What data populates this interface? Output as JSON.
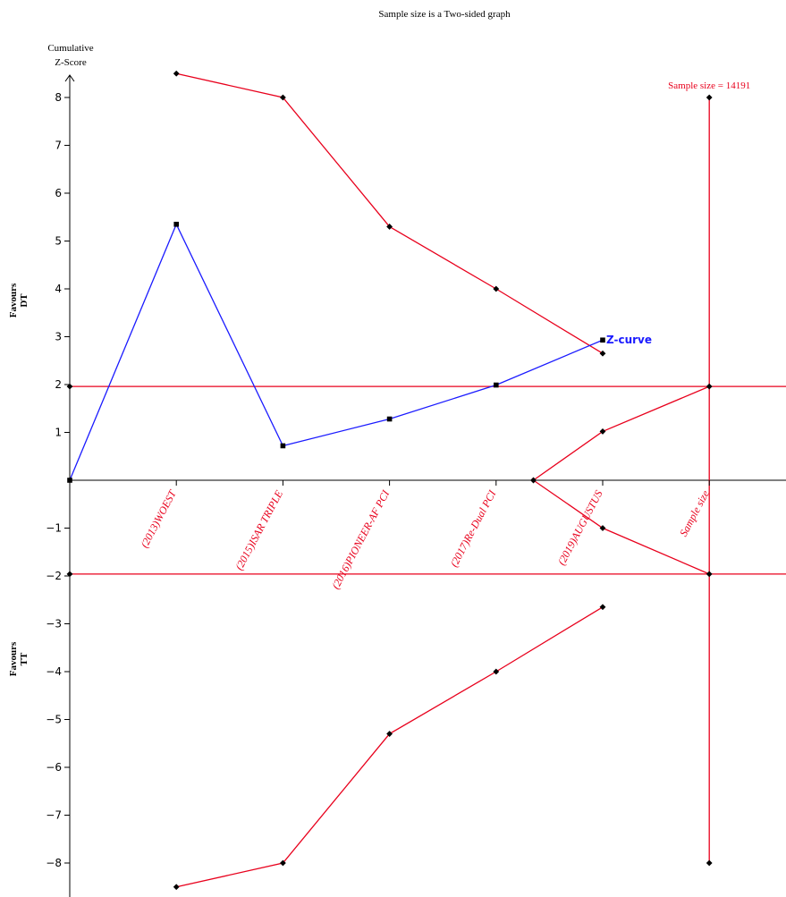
{
  "chart_data": {
    "type": "line",
    "title": "Sample size is a Two-sided graph",
    "ylabel_line1": "Cumulative",
    "ylabel_line2": "Z-Score",
    "favours_upper_line1": "Favours",
    "favours_upper_line2": "DT",
    "favours_lower_line1": "Favours",
    "favours_lower_line2": "TT",
    "ylim": [
      -8.5,
      8.6
    ],
    "yticks": [
      -8,
      -7,
      -6,
      -5,
      -4,
      -3,
      -2,
      -1,
      1,
      2,
      3,
      4,
      5,
      6,
      7,
      8
    ],
    "x_positions": [
      0,
      1,
      2,
      3,
      4,
      5,
      6
    ],
    "categories": [
      "(2013)WOEST",
      "(2015)ISAR TRIPLE",
      "(2016)PIONEER-AF PCI",
      "(2017)Re-Dual PCI",
      "(2019)AUGUSTUS",
      "Sample size"
    ],
    "category_x": [
      1,
      2,
      3,
      4,
      5,
      6
    ],
    "significance_boundary": 1.96,
    "sample_size_label": "Sample size = 14191",
    "z_curve": {
      "name": "Z-curve",
      "x": [
        0,
        1,
        2,
        3,
        4,
        5
      ],
      "y": [
        0,
        5.35,
        0.72,
        1.28,
        1.99,
        2.93
      ]
    },
    "upper_boundary": {
      "x": [
        1,
        2,
        3,
        4,
        5
      ],
      "y": [
        8.5,
        8.0,
        5.3,
        4.0,
        2.65
      ]
    },
    "lower_boundary": {
      "x": [
        1,
        2,
        3,
        4,
        5
      ],
      "y": [
        -8.5,
        -8.0,
        -5.3,
        -4.0,
        -2.65
      ]
    },
    "futility_upper": {
      "x": [
        4.35,
        5,
        6
      ],
      "y": [
        0,
        1.02,
        1.96
      ]
    },
    "futility_lower": {
      "x": [
        4.35,
        5,
        6
      ],
      "y": [
        0,
        -1.0,
        -1.96
      ]
    },
    "colors": {
      "boundary": "#e8001c",
      "z_curve": "#1a1aff",
      "axis": "#000000"
    }
  }
}
